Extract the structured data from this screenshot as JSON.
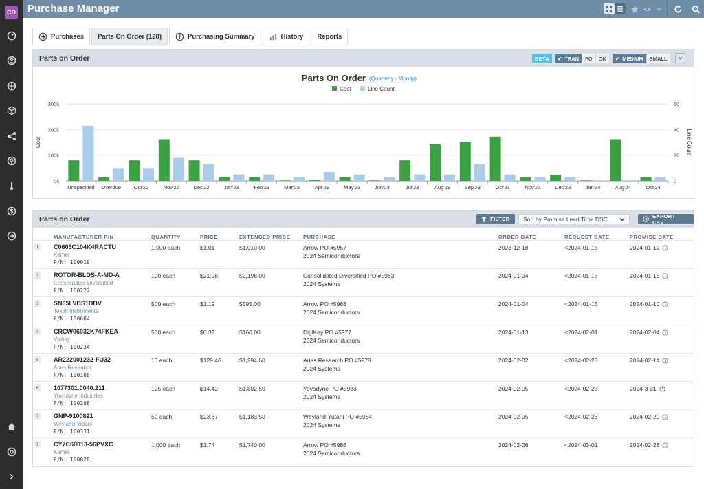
{
  "app": {
    "title": "Purchase Manager",
    "avatar": "CD"
  },
  "tabs": [
    {
      "label": "Purchases",
      "icon": "arrow-circle-icon"
    },
    {
      "label": "Parts On Order (128)",
      "icon": ""
    },
    {
      "label": "Purchasing Summary",
      "icon": "info-icon"
    },
    {
      "label": "History",
      "icon": "bar-chart-icon"
    },
    {
      "label": "Reports",
      "icon": ""
    }
  ],
  "chart_panel": {
    "title": "Parts on Order",
    "beta": "BETA",
    "check1": "✔",
    "tran": "TRAN",
    "fg": "FG",
    "ok": "OK",
    "check2": "✔",
    "medium": "MEDIUM",
    "small": "SMALL"
  },
  "chart_data": {
    "type": "bar",
    "title": "Parts On Order",
    "subtitle_open": "(",
    "subtitle_link1": "Quarterly",
    "subtitle_dash": " - ",
    "subtitle_link2": "Montly",
    "subtitle_close": ")",
    "ylabel": "Cost",
    "y2label": "Line Count",
    "ylim": [
      0,
      300000
    ],
    "y2lim": [
      0,
      60
    ],
    "yticks": [
      "0k",
      "100k",
      "200k",
      "300k"
    ],
    "y2ticks": [
      "0",
      "20",
      "40",
      "60"
    ],
    "legend_position": "top",
    "categories": [
      "Unspecified",
      "Overdue",
      "Oct'22",
      "Nov'22",
      "Dec'22",
      "Jan'23",
      "Feb'23",
      "Mar'23",
      "Apr'23",
      "May'23",
      "Jun'23",
      "Jul'23",
      "Aug'23",
      "Sep'23",
      "Oct'23",
      "Nov'23",
      "Dec'23",
      "Jan'24",
      "Aug'24",
      "Oct'24"
    ],
    "series": [
      {
        "name": "Cost",
        "axis": "left",
        "color": "#3aa142",
        "values": [
          80000,
          15000,
          80000,
          162000,
          80000,
          15000,
          15000,
          2000,
          4000,
          15000,
          2000,
          80000,
          142000,
          152000,
          172000,
          15000,
          24000,
          2000,
          162000,
          15000
        ]
      },
      {
        "name": "Line Count",
        "axis": "right",
        "color": "#a9cdeb",
        "values": [
          43,
          10,
          10,
          18,
          13,
          5,
          5,
          3,
          7,
          5,
          3,
          5,
          5,
          13,
          5,
          3,
          3,
          0.5,
          0.5,
          3
        ]
      }
    ]
  },
  "orders_panel": {
    "title": "Parts on Order",
    "filter_label": "FILTER",
    "sort_label": "Sort by Promise Lead Time DSC",
    "export_label": "EXPORT CSV"
  },
  "table": {
    "headers": [
      "MANUFACTURER P/N",
      "QUANTITY",
      "PRICE",
      "EXTENDED PRICE",
      "PURCHASE",
      "ORDER DATE",
      "REQUEST DATE",
      "PROMISE DATE"
    ],
    "rows": [
      {
        "idx": "1",
        "mpn": "C0603C104K4RACTU",
        "maker": "Kemet",
        "pn": "P/N: 100019",
        "qty": "1,000 each",
        "price": "$1.01",
        "ext": "$1,010.00",
        "po": "Arrow PO #5957",
        "vendor": "2024 Semiconductors",
        "order": "2023-12-18",
        "request": "<2024-01-15",
        "promise": "2024-01-12"
      },
      {
        "idx": "2",
        "mpn": "ROTOR-BLDS-A-MD-A",
        "maker": "Consolidated Diversified",
        "pn": "P/N: 100222",
        "qty": "100 each",
        "price": "$21.98",
        "ext": "$2,198.00",
        "po": "Consolidated Diversified PO #5963",
        "vendor": "2024 Systems",
        "order": "2024-01-04",
        "request": "<2024-01-15",
        "promise": "2024-01-15"
      },
      {
        "idx": "3",
        "mpn": "SN65LVDS1DBV",
        "maker": "Texas Instruments",
        "pn": "P/N: 100684",
        "qty": "500 each",
        "price": "$1.19",
        "ext": "$595.00",
        "po": "Arrow PO #5968",
        "vendor": "2024 Semiconductors",
        "order": "2024-01-04",
        "request": "<2024-01-15",
        "promise": "2024-01-10"
      },
      {
        "idx": "4",
        "mpn": "CRCW06032K74FKEA",
        "maker": "Vishay",
        "pn": "P/N: 100234",
        "qty": "500 each",
        "price": "$0.32",
        "ext": "$160.00",
        "po": "DigiKey PO #5977",
        "vendor": "2024 Semiconductors",
        "order": "2024-01-13",
        "request": "<2024-02-01",
        "promise": "2024-02-04"
      },
      {
        "idx": "5",
        "mpn": "AR222001232-FU32",
        "maker": "Aries Research",
        "pn": "P/N: 100108",
        "qty": "10 each",
        "price": "$129.46",
        "ext": "$1,294.60",
        "po": "Aries Research PO #5978",
        "vendor": "2024 Systems",
        "order": "2024-02-02",
        "request": "<2024-02-23",
        "promise": "2024-02-14"
      },
      {
        "idx": "6",
        "mpn": "1077301.0040.211",
        "maker": "Yoyodyne Industries",
        "pn": "P/N: 100308",
        "qty": "125 each",
        "price": "$14.42",
        "ext": "$1,802.50",
        "po": "Yoyodyne PO #5983",
        "vendor": "2024 Systems",
        "order": "2024-02-05",
        "request": "<2024-02-23",
        "promise": "2024-3-31"
      },
      {
        "idx": "7",
        "mpn": "GNP-9100821",
        "maker": "Weyland-Yutani",
        "pn": "P/N: 100331",
        "qty": "50 each",
        "price": "$23.67",
        "ext": "$1,183.50",
        "po": "Weyland-Yutani PO #5984",
        "vendor": "2024 Systems",
        "order": "2024-02-05",
        "request": "<2024-02-23",
        "promise": "2024-02-20"
      },
      {
        "idx": "7",
        "mpn": "CY7C68013-56PVXC",
        "maker": "Kemet",
        "pn": "P/N: 100020",
        "qty": "1,000 each",
        "price": "$1.74",
        "ext": "$1,740.00",
        "po": "Arrow PO #5986",
        "vendor": "2024 Semiconductors",
        "order": "2024-02-06",
        "request": "<2024-03-01",
        "promise": "2024-02-28"
      }
    ]
  }
}
